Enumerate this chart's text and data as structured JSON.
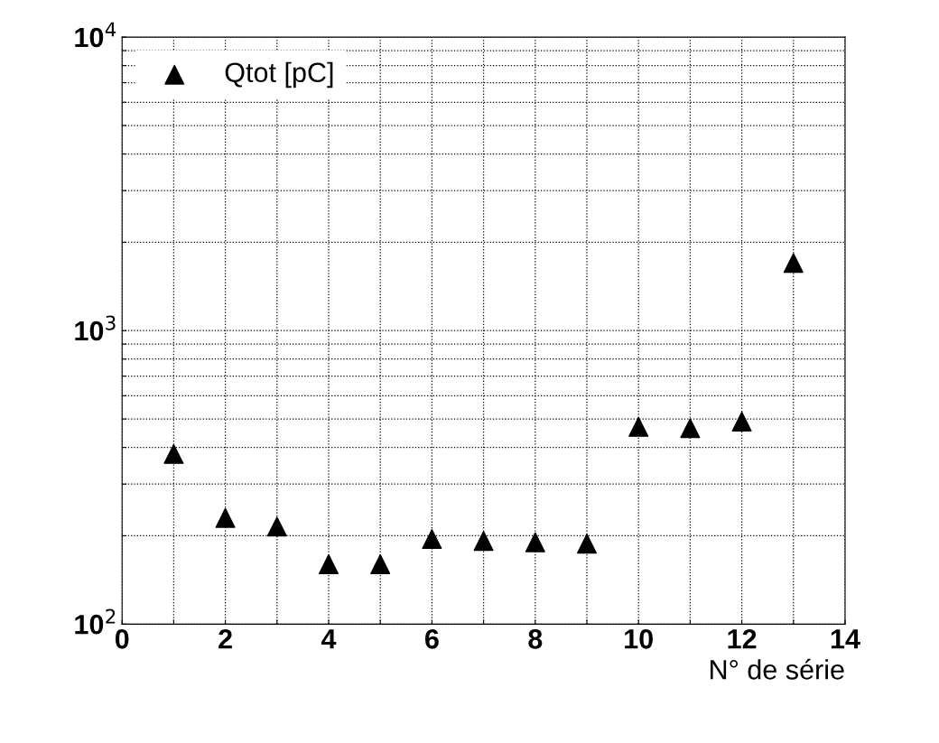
{
  "chart_data": {
    "type": "scatter",
    "xlabel": "N° de série",
    "log": "y",
    "grid": true,
    "legend": "top left",
    "marker": "triangle",
    "x": [
      1,
      2,
      3,
      4,
      5,
      6,
      7,
      8,
      9,
      10,
      11,
      12,
      13
    ],
    "series": [
      {
        "name": "Qtot [pC]",
        "color": "#000000",
        "values": [
          380,
          230,
          215,
          160,
          160,
          195,
          192,
          190,
          188,
          470,
          465,
          490,
          1700
        ]
      }
    ],
    "xlim": [
      0,
      14
    ],
    "xticks": [
      0,
      {
        "value": 1,
        "label": null
      },
      2,
      {
        "value": 3,
        "label": null
      },
      4,
      {
        "value": 5,
        "label": null
      },
      6,
      {
        "value": 7,
        "label": null
      },
      8,
      {
        "value": 9,
        "label": null
      },
      10,
      {
        "value": 11,
        "label": null
      },
      12,
      {
        "value": 13,
        "label": null
      },
      14
    ],
    "ylim": [
      100,
      10000
    ],
    "yticks": [
      {
        "value": 100,
        "label": "10$^{2}$"
      },
      {
        "value": 200,
        "label": null
      },
      {
        "value": 300,
        "label": null
      },
      {
        "value": 400,
        "label": null
      },
      {
        "value": 500,
        "label": null
      },
      {
        "value": 600,
        "label": null
      },
      {
        "value": 700,
        "label": null
      },
      {
        "value": 800,
        "label": null
      },
      {
        "value": 900,
        "label": null
      },
      {
        "value": 1000,
        "label": "10$^{3}$"
      },
      {
        "value": 2000,
        "label": null
      },
      {
        "value": 3000,
        "label": null
      },
      {
        "value": 4000,
        "label": null
      },
      {
        "value": 5000,
        "label": null
      },
      {
        "value": 6000,
        "label": null
      },
      {
        "value": 7000,
        "label": null
      },
      {
        "value": 8000,
        "label": null
      },
      {
        "value": 9000,
        "label": null
      },
      {
        "value": 10000,
        "label": "10$^{4}$"
      }
    ]
  }
}
